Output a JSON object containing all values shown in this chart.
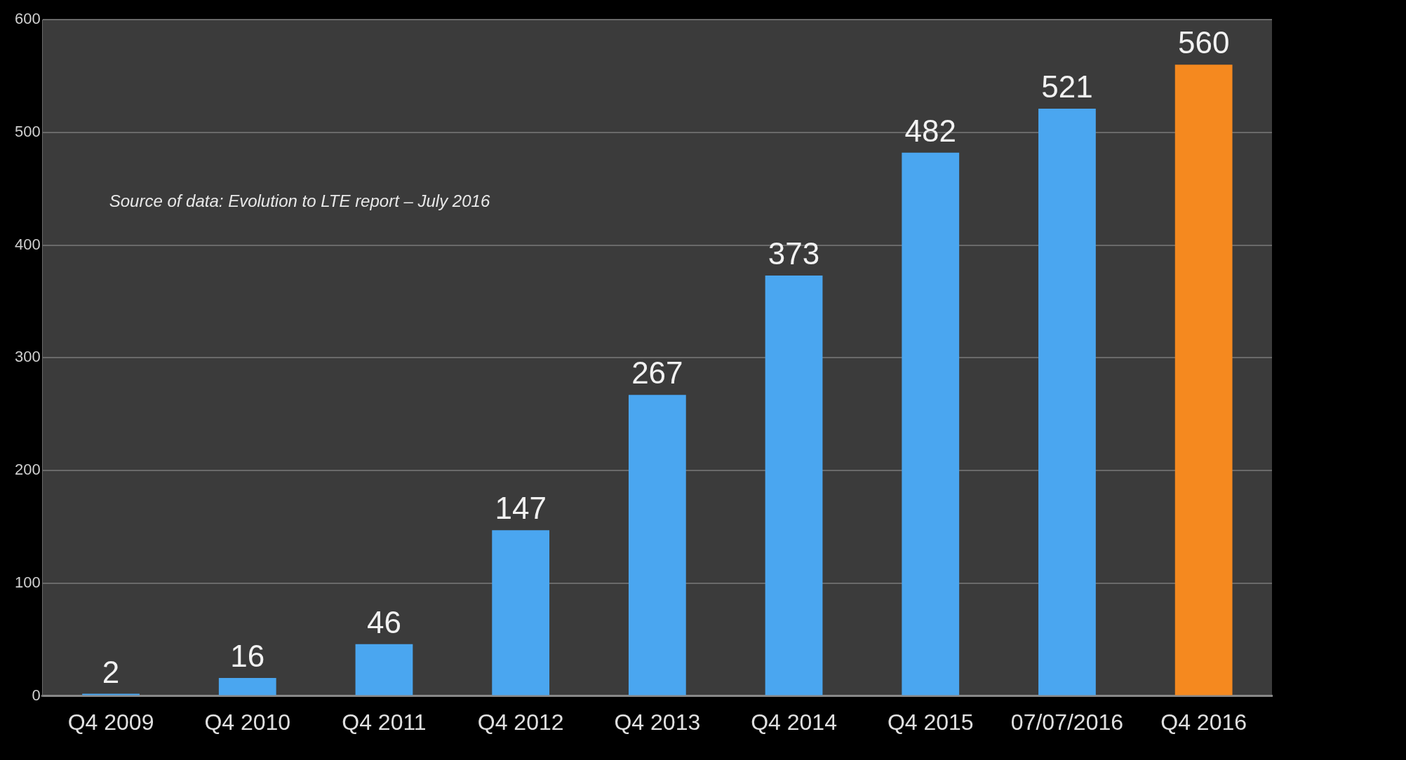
{
  "chart_data": {
    "type": "bar",
    "categories": [
      "Q4 2009",
      "Q4 2010",
      "Q4 2011",
      "Q4 2012",
      "Q4 2013",
      "Q4 2014",
      "Q4 2015",
      "07/07/2016",
      "Q4 2016"
    ],
    "values": [
      2,
      16,
      46,
      147,
      267,
      373,
      482,
      521,
      560
    ],
    "colors": [
      "#4aa6f0",
      "#4aa6f0",
      "#4aa6f0",
      "#4aa6f0",
      "#4aa6f0",
      "#4aa6f0",
      "#4aa6f0",
      "#4aa6f0",
      "#f5891f"
    ],
    "ylim": [
      0,
      600
    ],
    "yticks": [
      0,
      100,
      200,
      300,
      400,
      500,
      600
    ],
    "grid": "y",
    "data_labels": true,
    "annotations": [
      "Source of data: Evolution to LTE report – July 2016"
    ]
  }
}
